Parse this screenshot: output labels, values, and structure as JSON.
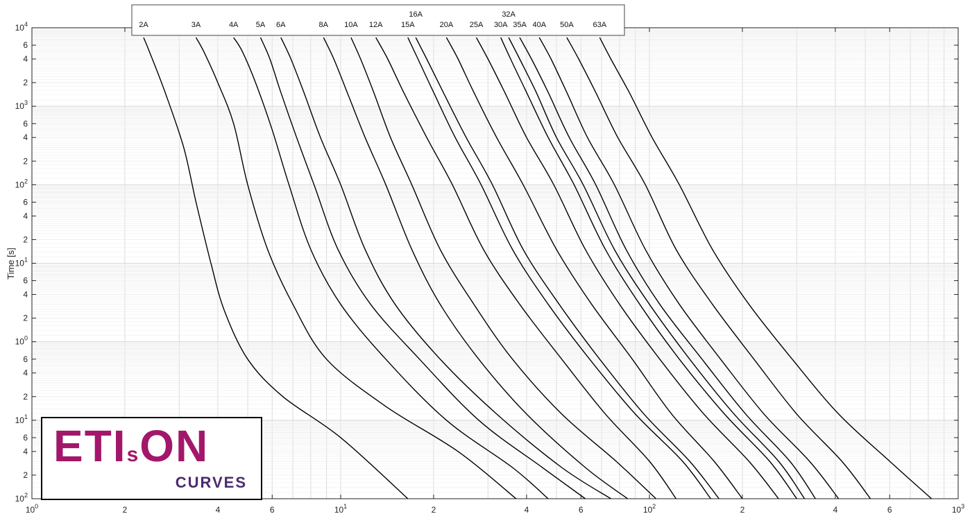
{
  "chart_data": {
    "type": "line",
    "title": "",
    "xlabel": "",
    "ylabel": "Time [s]",
    "x_scale": "log",
    "y_scale": "log",
    "xlim": [
      1,
      1000
    ],
    "ylim": [
      0.01,
      10000
    ],
    "grid": true,
    "legend": "none (curve labels at top in a boxed strip)",
    "x_ticks": [
      {
        "v": 1,
        "base": "10",
        "exp": "0"
      },
      {
        "v": 2,
        "base": "2",
        "exp": ""
      },
      {
        "v": 4,
        "base": "4",
        "exp": ""
      },
      {
        "v": 6,
        "base": "6",
        "exp": ""
      },
      {
        "v": 10,
        "base": "10",
        "exp": "1"
      },
      {
        "v": 20,
        "base": "2",
        "exp": ""
      },
      {
        "v": 40,
        "base": "4",
        "exp": ""
      },
      {
        "v": 60,
        "base": "6",
        "exp": ""
      },
      {
        "v": 100,
        "base": "10",
        "exp": "2"
      },
      {
        "v": 200,
        "base": "2",
        "exp": ""
      },
      {
        "v": 400,
        "base": "4",
        "exp": ""
      },
      {
        "v": 600,
        "base": "6",
        "exp": ""
      },
      {
        "v": 1000,
        "base": "10",
        "exp": "3"
      }
    ],
    "y_ticks": [
      {
        "v": 10000,
        "base": "10",
        "exp": "4"
      },
      {
        "v": 6000,
        "base": "6",
        "exp": ""
      },
      {
        "v": 4000,
        "base": "4",
        "exp": ""
      },
      {
        "v": 2000,
        "base": "2",
        "exp": ""
      },
      {
        "v": 1000,
        "base": "10",
        "exp": "3"
      },
      {
        "v": 600,
        "base": "6",
        "exp": ""
      },
      {
        "v": 400,
        "base": "4",
        "exp": ""
      },
      {
        "v": 200,
        "base": "2",
        "exp": ""
      },
      {
        "v": 100,
        "base": "10",
        "exp": "2"
      },
      {
        "v": 60,
        "base": "6",
        "exp": ""
      },
      {
        "v": 40,
        "base": "4",
        "exp": ""
      },
      {
        "v": 20,
        "base": "2",
        "exp": ""
      },
      {
        "v": 10,
        "base": "10",
        "exp": "1"
      },
      {
        "v": 6,
        "base": "6",
        "exp": ""
      },
      {
        "v": 4,
        "base": "4",
        "exp": ""
      },
      {
        "v": 2,
        "base": "2",
        "exp": ""
      },
      {
        "v": 1,
        "base": "10",
        "exp": "0"
      },
      {
        "v": 0.6,
        "base": "6",
        "exp": ""
      },
      {
        "v": 0.4,
        "base": "4",
        "exp": ""
      },
      {
        "v": 0.2,
        "base": "2",
        "exp": ""
      },
      {
        "v": 0.1,
        "base": "10",
        "exp": "1"
      },
      {
        "v": 0.06,
        "base": "6",
        "exp": ""
      },
      {
        "v": 0.04,
        "base": "4",
        "exp": ""
      },
      {
        "v": 0.02,
        "base": "2",
        "exp": ""
      },
      {
        "v": 0.01,
        "base": "10",
        "exp": "2"
      }
    ],
    "series": [
      {
        "name": "2A",
        "x": [
          2.3,
          2.4,
          2.7,
          3.1,
          3.4,
          3.8,
          4.2,
          5.0,
          6.5,
          10.0,
          16.5
        ],
        "y": [
          7500,
          5000,
          1500,
          300,
          60,
          10,
          2.5,
          0.6,
          0.2,
          0.06,
          0.01
        ]
      },
      {
        "name": "3A",
        "x": [
          3.4,
          3.6,
          4.0,
          4.5,
          5.0,
          5.8,
          7.0,
          9.0,
          14.0,
          24.0,
          37.0
        ],
        "y": [
          7500,
          5000,
          2000,
          600,
          100,
          15,
          3,
          0.6,
          0.15,
          0.04,
          0.01
        ]
      },
      {
        "name": "4A",
        "x": [
          4.5,
          4.8,
          5.3,
          6.0,
          6.8,
          8.0,
          10.0,
          14.0,
          22.0,
          36.0,
          47.0
        ],
        "y": [
          7500,
          5000,
          2000,
          500,
          100,
          15,
          3,
          0.6,
          0.1,
          0.025,
          0.01
        ]
      },
      {
        "name": "5A",
        "x": [
          5.5,
          5.9,
          6.4,
          7.2,
          8.2,
          9.8,
          12.5,
          18.0,
          28.0,
          45.0,
          62.0
        ],
        "y": [
          7500,
          4000,
          1500,
          400,
          100,
          15,
          3,
          0.6,
          0.1,
          0.025,
          0.01
        ]
      },
      {
        "name": "6A",
        "x": [
          6.4,
          6.9,
          7.6,
          8.6,
          10.0,
          12.0,
          15.0,
          21.0,
          32.0,
          52.0,
          75.0
        ],
        "y": [
          7500,
          4000,
          1500,
          400,
          100,
          15,
          3,
          0.6,
          0.12,
          0.025,
          0.01
        ]
      },
      {
        "name": "8A",
        "x": [
          8.8,
          9.5,
          10.5,
          12.0,
          14.0,
          17.0,
          21.0,
          28.0,
          40.0,
          62.0,
          85.0
        ],
        "y": [
          7500,
          4000,
          1500,
          400,
          100,
          15,
          3,
          0.6,
          0.12,
          0.025,
          0.01
        ]
      },
      {
        "name": "10A",
        "x": [
          10.8,
          11.6,
          12.8,
          14.5,
          17.0,
          21.0,
          27.0,
          36.0,
          52.0,
          78.0,
          105.0
        ],
        "y": [
          7500,
          4000,
          1500,
          400,
          100,
          15,
          3,
          0.6,
          0.12,
          0.03,
          0.01
        ]
      },
      {
        "name": "12A",
        "x": [
          13.0,
          14.2,
          16.0,
          19.0,
          23.0,
          29.0,
          38.0,
          52.0,
          72.0,
          100.0,
          122.0
        ],
        "y": [
          7500,
          4000,
          1500,
          400,
          100,
          15,
          3,
          0.6,
          0.12,
          0.03,
          0.01
        ]
      },
      {
        "name": "15A",
        "x": [
          16.5,
          17.8,
          20.0,
          23.5,
          28.5,
          36.0,
          47.0,
          64.0,
          90.0,
          128.0,
          158.0
        ],
        "y": [
          7500,
          4000,
          1500,
          400,
          100,
          15,
          3,
          0.6,
          0.12,
          0.03,
          0.01
        ]
      },
      {
        "name": "16A",
        "x": [
          17.5,
          19.0,
          21.5,
          25.5,
          31.0,
          39.0,
          51.0,
          69.0,
          96.0,
          135.0,
          168.0
        ],
        "y": [
          7500,
          4000,
          1500,
          400,
          100,
          15,
          3,
          0.6,
          0.12,
          0.03,
          0.01
        ]
      },
      {
        "name": "20A",
        "x": [
          22.0,
          24.0,
          27.0,
          32.0,
          39.0,
          50.0,
          65.0,
          88.0,
          118.0,
          162.0,
          200.0
        ],
        "y": [
          7500,
          4000,
          1500,
          400,
          100,
          15,
          3,
          0.6,
          0.12,
          0.03,
          0.01
        ]
      },
      {
        "name": "25A",
        "x": [
          27.5,
          30.0,
          34.0,
          40.0,
          49.0,
          62.0,
          80.0,
          108.0,
          150.0,
          210.0,
          262.0
        ],
        "y": [
          7500,
          4000,
          1500,
          400,
          100,
          15,
          3,
          0.6,
          0.12,
          0.03,
          0.01
        ]
      },
      {
        "name": "30A",
        "x": [
          33.0,
          35.5,
          40.0,
          47.0,
          57.0,
          72.0,
          93.0,
          125.0,
          175.0,
          245.0,
          300.0
        ],
        "y": [
          7500,
          4000,
          1500,
          400,
          100,
          15,
          3,
          0.6,
          0.12,
          0.03,
          0.01
        ]
      },
      {
        "name": "32A",
        "x": [
          35.0,
          38.0,
          43.0,
          50.0,
          61.0,
          77.0,
          100.0,
          135.0,
          188.0,
          262.0,
          318.0
        ],
        "y": [
          7500,
          4000,
          1500,
          400,
          100,
          15,
          3,
          0.6,
          0.12,
          0.03,
          0.01
        ]
      },
      {
        "name": "35A",
        "x": [
          38.0,
          41.5,
          47.0,
          55.0,
          67.0,
          84.0,
          108.0,
          148.0,
          205.0,
          285.0,
          345.0
        ],
        "y": [
          7500,
          4000,
          1500,
          400,
          100,
          15,
          3,
          0.6,
          0.12,
          0.03,
          0.01
        ]
      },
      {
        "name": "40A",
        "x": [
          44.0,
          48.0,
          54.0,
          63.0,
          77.0,
          97.0,
          125.0,
          170.0,
          235.0,
          330.0,
          410.0
        ],
        "y": [
          7500,
          4000,
          1500,
          400,
          100,
          15,
          3,
          0.6,
          0.12,
          0.03,
          0.01
        ]
      },
      {
        "name": "50A",
        "x": [
          54.0,
          59.0,
          67.0,
          79.0,
          97.0,
          122.0,
          160.0,
          218.0,
          300.0,
          420.0,
          520.0
        ],
        "y": [
          7500,
          4000,
          1500,
          400,
          100,
          15,
          3,
          0.6,
          0.12,
          0.03,
          0.01
        ]
      },
      {
        "name": "63A",
        "x": [
          69.0,
          75.0,
          86.0,
          102.0,
          125.0,
          160.0,
          210.0,
          290.0,
          410.0,
          600.0,
          820.0
        ],
        "y": [
          7500,
          4000,
          1500,
          400,
          100,
          15,
          3,
          0.6,
          0.12,
          0.03,
          0.01
        ]
      }
    ]
  },
  "labels": {
    "two_row": [
      "16A",
      "32A"
    ]
  },
  "logo": {
    "main": "ETIsON",
    "main_left": "ETI",
    "main_small": "s",
    "main_right": "ON",
    "sub": "CURVES"
  },
  "colors": {
    "curve": "#000000",
    "grid_major": "#d9d9d9",
    "grid_minor": "#efefef",
    "logo_main": "#a3176a",
    "logo_sub": "#4b2a6e"
  }
}
